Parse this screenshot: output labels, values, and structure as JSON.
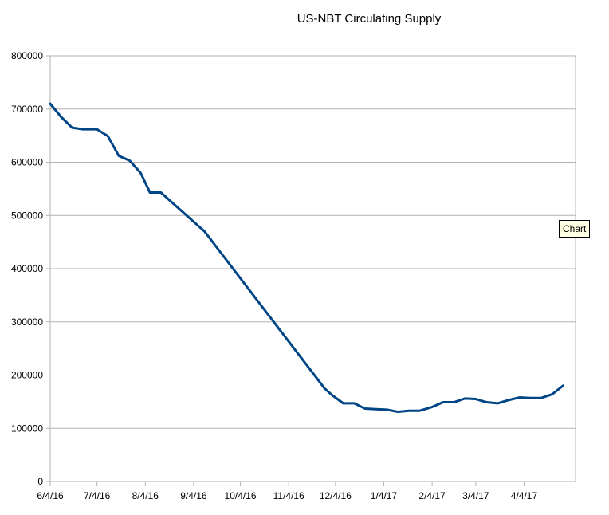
{
  "chart_data": {
    "type": "line",
    "title": "US-NBT Circulating Supply",
    "xlabel": "",
    "ylabel": "",
    "x_ticks": [
      "6/4/16",
      "7/4/16",
      "8/4/16",
      "9/4/16",
      "10/4/16",
      "11/4/16",
      "12/4/16",
      "1/4/17",
      "2/4/17",
      "3/4/17",
      "4/4/17"
    ],
    "y_ticks": [
      0,
      100000,
      200000,
      300000,
      400000,
      500000,
      600000,
      700000,
      800000
    ],
    "ylim": [
      0,
      800000
    ],
    "xlim": [
      "2016-06-04",
      "2017-05-07"
    ],
    "grid": {
      "horizontal": true,
      "vertical": false
    },
    "legend": "none",
    "series": [
      {
        "color": "#004586",
        "points": [
          [
            "2016-06-04",
            710000
          ],
          [
            "2016-06-11",
            685000
          ],
          [
            "2016-06-18",
            665000
          ],
          [
            "2016-06-25",
            662000
          ],
          [
            "2016-07-04",
            662000
          ],
          [
            "2016-07-11",
            649000
          ],
          [
            "2016-07-18",
            612000
          ],
          [
            "2016-07-25",
            603000
          ],
          [
            "2016-08-01",
            580000
          ],
          [
            "2016-08-07",
            543000
          ],
          [
            "2016-08-14",
            543000
          ],
          [
            "2016-09-11",
            470000
          ],
          [
            "2016-11-27",
            175000
          ],
          [
            "2016-12-02",
            162000
          ],
          [
            "2016-12-09",
            147000
          ],
          [
            "2016-12-16",
            147000
          ],
          [
            "2016-12-23",
            137000
          ],
          [
            "2016-12-30",
            136000
          ],
          [
            "2017-01-06",
            135000
          ],
          [
            "2017-01-13",
            131000
          ],
          [
            "2017-01-20",
            133000
          ],
          [
            "2017-01-27",
            133000
          ],
          [
            "2017-02-04",
            140000
          ],
          [
            "2017-02-11",
            149000
          ],
          [
            "2017-02-18",
            149000
          ],
          [
            "2017-02-25",
            156000
          ],
          [
            "2017-03-04",
            155000
          ],
          [
            "2017-03-11",
            149000
          ],
          [
            "2017-03-18",
            147000
          ],
          [
            "2017-03-25",
            153000
          ],
          [
            "2017-04-01",
            158000
          ],
          [
            "2017-04-08",
            157000
          ],
          [
            "2017-04-15",
            157000
          ],
          [
            "2017-04-22",
            164000
          ],
          [
            "2017-04-29",
            180000
          ]
        ]
      }
    ]
  },
  "tooltip": {
    "text": "Chart"
  },
  "colors": {
    "line": "#004586",
    "gridline": "#b3b3b3",
    "axis": "#b3b3b3",
    "tooltip_bg": "#ffffe1"
  }
}
